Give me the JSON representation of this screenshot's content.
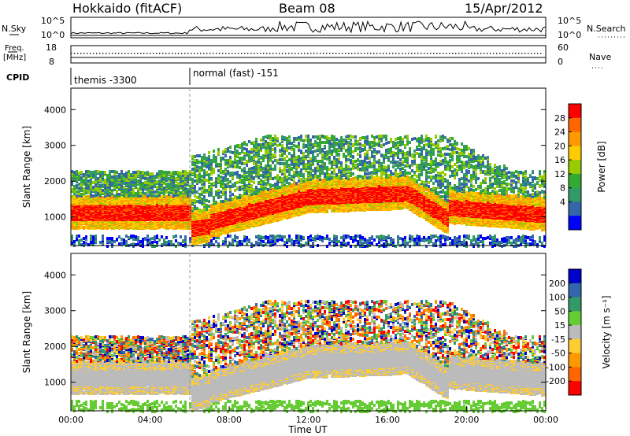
{
  "header": {
    "station": "Hokkaido (fitACF)",
    "beam": "Beam 08",
    "date": "15/Apr/2012"
  },
  "top_panels": {
    "nsky_label": "N.Sky",
    "nsearch_label": "N.Search",
    "nsky_ticks": [
      "10^5",
      "10^0"
    ],
    "nsearch_ticks": [
      "10^5",
      "10^0"
    ],
    "freq_label_1": "Freq.",
    "freq_label_2": "[MHz]",
    "freq_ticks": [
      "18",
      "8"
    ],
    "nave_label": "Nave",
    "nave_ticks": [
      "60",
      "0"
    ],
    "cpid_label": "CPID",
    "cpid_segments": [
      "themis -3300",
      "normal (fast) -151"
    ]
  },
  "chart_data": [
    {
      "type": "heatmap",
      "panel": "power",
      "xlabel": "",
      "ylabel": "Slant Range [km]",
      "x_range_hours": [
        0,
        24
      ],
      "ylim": [
        200,
        4600
      ],
      "y_ticks": [
        1000,
        2000,
        3000,
        4000
      ],
      "colorbar": {
        "label": "Power [dB]",
        "ticks": [
          "28",
          "24",
          "20",
          "16",
          "12",
          "8",
          "4"
        ],
        "colors": [
          "#ff0000",
          "#ff6600",
          "#ff9900",
          "#ffcc00",
          "#99cc00",
          "#33aa33",
          "#339966",
          "#3366aa",
          "#0000ff"
        ]
      }
    },
    {
      "type": "heatmap",
      "panel": "velocity",
      "xlabel": "Time UT",
      "ylabel": "Slant Range [km]",
      "x_range_hours": [
        0,
        24
      ],
      "x_ticks": [
        "00:00",
        "04:00",
        "08:00",
        "12:00",
        "16:00",
        "20:00",
        "00:00"
      ],
      "ylim": [
        200,
        4600
      ],
      "y_ticks": [
        1000,
        2000,
        3000,
        4000
      ],
      "colorbar": {
        "label": "Velocity [m s⁻¹]",
        "ticks": [
          "200",
          "100",
          "50",
          "15",
          "-15",
          "-50",
          "-100",
          "-200"
        ],
        "colors": [
          "#0000cc",
          "#3366aa",
          "#339966",
          "#66cc33",
          "#bbbbbb",
          "#ffcc33",
          "#ff9900",
          "#ff6600",
          "#ff0000"
        ]
      }
    }
  ]
}
